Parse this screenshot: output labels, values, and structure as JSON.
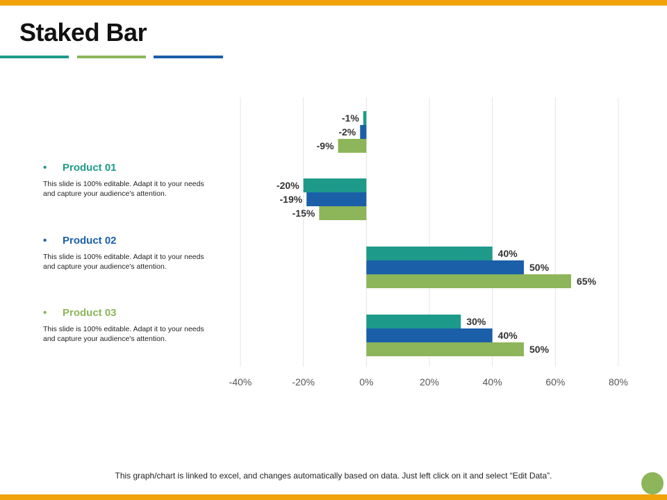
{
  "slide": {
    "title": "Staked Bar",
    "footer": "This graph/chart is linked to excel, and changes automatically based on data. Just left click on it and select “Edit Data”."
  },
  "colors": {
    "accent": "#f0a30a",
    "teal": "#1e9a8a",
    "blue": "#1a5fa8",
    "green": "#8db55a"
  },
  "products": [
    {
      "bullet": "•",
      "title": "Product 01",
      "color": "#1e9a8a",
      "desc": "This slide is 100% editable. Adapt it to your needs and capture your audience's attention."
    },
    {
      "bullet": "•",
      "title": "Product 02",
      "color": "#1a5fa8",
      "desc": "This slide is 100% editable. Adapt it to your needs and capture your audience's attention."
    },
    {
      "bullet": "•",
      "title": "Product 03",
      "color": "#8db55a",
      "desc": "This slide is 100% editable. Adapt it to your needs and capture your audience's attention."
    }
  ],
  "chart_data": {
    "type": "bar",
    "orientation": "horizontal",
    "title": "",
    "xlim": [
      -40,
      80
    ],
    "xticks": [
      -40,
      -20,
      0,
      20,
      40,
      60,
      80
    ],
    "xtick_labels": [
      "-40%",
      "-20%",
      "0%",
      "20%",
      "40%",
      "60%",
      "80%"
    ],
    "grid": true,
    "groups": [
      {
        "bars": [
          {
            "value": -1,
            "label": "-1%",
            "color": "#1e9a8a"
          },
          {
            "value": -2,
            "label": "-2%",
            "color": "#1a5fa8"
          },
          {
            "value": -9,
            "label": "-9%",
            "color": "#8db55a"
          }
        ]
      },
      {
        "bars": [
          {
            "value": -20,
            "label": "-20%",
            "color": "#1e9a8a"
          },
          {
            "value": -19,
            "label": "-19%",
            "color": "#1a5fa8"
          },
          {
            "value": -15,
            "label": "-15%",
            "color": "#8db55a"
          }
        ]
      },
      {
        "bars": [
          {
            "value": 40,
            "label": "40%",
            "color": "#1e9a8a"
          },
          {
            "value": 50,
            "label": "50%",
            "color": "#1a5fa8"
          },
          {
            "value": 65,
            "label": "65%",
            "color": "#8db55a"
          }
        ]
      },
      {
        "bars": [
          {
            "value": 30,
            "label": "30%",
            "color": "#1e9a8a"
          },
          {
            "value": 40,
            "label": "40%",
            "color": "#1a5fa8"
          },
          {
            "value": 50,
            "label": "50%",
            "color": "#8db55a"
          }
        ]
      }
    ]
  }
}
